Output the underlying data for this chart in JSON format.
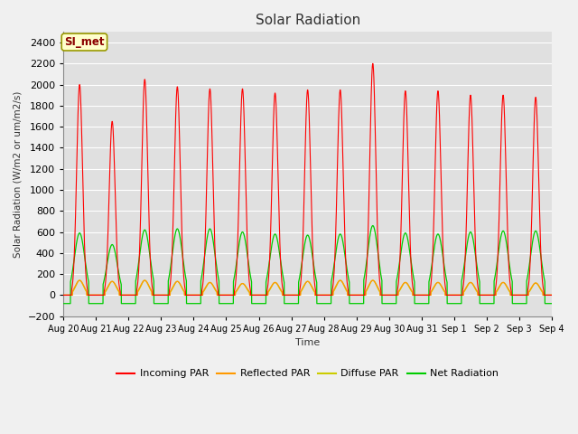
{
  "title": "Solar Radiation",
  "ylabel": "Solar Radiation (W/m2 or um/m2/s)",
  "xlabel": "Time",
  "ylim": [
    -200,
    2500
  ],
  "yticks": [
    -200,
    0,
    200,
    400,
    600,
    800,
    1000,
    1200,
    1400,
    1600,
    1800,
    2000,
    2200,
    2400
  ],
  "x_labels": [
    "Aug 20",
    "Aug 21",
    "Aug 22",
    "Aug 23",
    "Aug 24",
    "Aug 25",
    "Aug 26",
    "Aug 27",
    "Aug 28",
    "Aug 29",
    "Aug 30",
    "Aug 31",
    "Sep 1",
    "Sep 2",
    "Sep 3",
    "Sep 4"
  ],
  "n_days": 15,
  "fig_bg_color": "#f0f0f0",
  "plot_bg_color": "#e0e0e0",
  "line_colors": {
    "incoming": "#ff0000",
    "reflected": "#ff9900",
    "diffuse": "#cccc00",
    "net": "#00cc00"
  },
  "legend_label_box": "SI_met",
  "legend_labels": [
    "Incoming PAR",
    "Reflected PAR",
    "Diffuse PAR",
    "Net Radiation"
  ],
  "day_peaks_incoming": [
    2000,
    1650,
    2050,
    1980,
    1960,
    1960,
    1920,
    1950,
    1950,
    2200,
    1940,
    1940,
    1900,
    1900,
    1880
  ],
  "day_peaks_net": [
    590,
    480,
    620,
    630,
    630,
    600,
    580,
    570,
    580,
    660,
    590,
    580,
    600,
    610,
    610
  ],
  "day_peaks_reflected": [
    140,
    130,
    140,
    130,
    120,
    110,
    120,
    130,
    140,
    140,
    120,
    120,
    120,
    120,
    115
  ],
  "day_peaks_diffuse": [
    140,
    130,
    140,
    130,
    120,
    110,
    120,
    130,
    140,
    140,
    120,
    120,
    120,
    120,
    115
  ],
  "night_net": -80
}
